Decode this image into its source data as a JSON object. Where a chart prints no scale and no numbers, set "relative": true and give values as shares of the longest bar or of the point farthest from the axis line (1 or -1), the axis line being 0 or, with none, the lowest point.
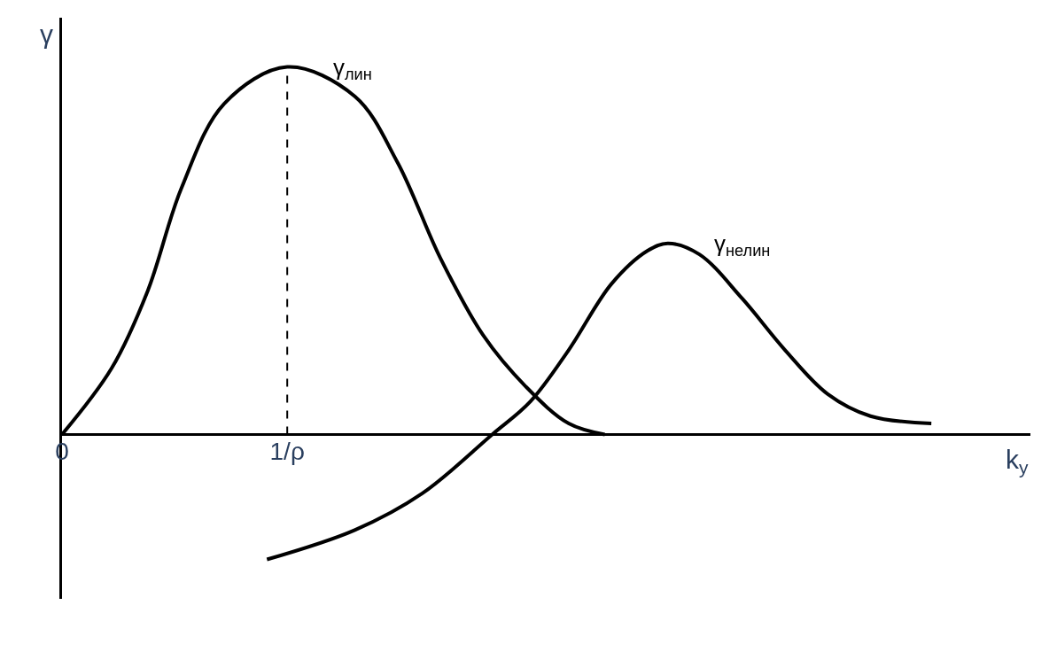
{
  "chart_data": {
    "type": "line",
    "relative": true,
    "xlabel": "k$_{y}$",
    "ylabel": "γ",
    "xlim": [
      0,
      4.3
    ],
    "xticks": [
      {
        "value": 0,
        "label": "0"
      },
      {
        "value": 1,
        "label": "1/ρ"
      }
    ],
    "series": [
      {
        "name": "γ$_{лин}$",
        "color": "#000000",
        "x": [
          0,
          0.22,
          0.38,
          0.53,
          0.72,
          1,
          1.3,
          1.49,
          1.68,
          1.87,
          2.06,
          2.25,
          2.41
        ],
        "values": [
          0,
          0.18,
          0.39,
          0.67,
          0.9,
          1,
          0.92,
          0.74,
          0.48,
          0.27,
          0.13,
          0.03,
          0
        ]
      },
      {
        "name": "γ$_{нелин}$",
        "color": "#000000",
        "x": [
          0.91,
          1.3,
          1.6,
          1.91,
          2.08,
          2.25,
          2.44,
          2.6,
          2.69,
          2.83,
          3.02,
          3.21,
          3.4,
          3.59,
          3.86
        ],
        "values": [
          -0.34,
          -0.26,
          -0.16,
          0,
          0.09,
          0.23,
          0.41,
          0.5,
          0.52,
          0.49,
          0.37,
          0.23,
          0.11,
          0.05,
          0.03
        ]
      }
    ],
    "ref_lines": [
      {
        "axis": "x",
        "value": 1,
        "line_style": "dashed"
      }
    ],
    "marker": "none",
    "line_style": "solid",
    "legend": false
  }
}
